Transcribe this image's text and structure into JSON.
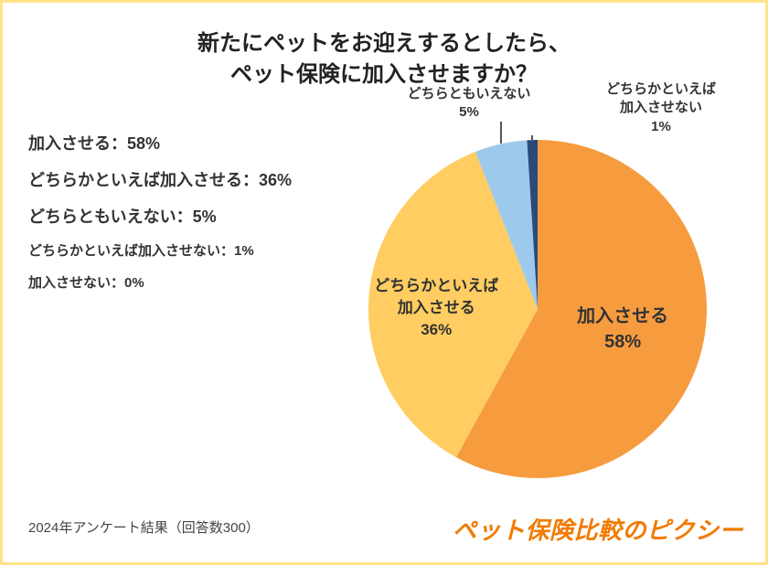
{
  "title_line1": "新たにペットをお迎えするとしたら、",
  "title_line2": "ペット保険に加入させますか？",
  "title_fontsize": 24,
  "title_color": "#222222",
  "legend_items": [
    {
      "text": "加入させる：58%",
      "fontsize": 18
    },
    {
      "text": "どちらかといえば加入させる：36%",
      "fontsize": 18
    },
    {
      "text": "どちらともいえない：5%",
      "fontsize": 18
    },
    {
      "text": "どちらかといえば加入させない：1%",
      "fontsize": 15
    },
    {
      "text": "加入させない：0%",
      "fontsize": 15
    }
  ],
  "pie_chart": {
    "type": "pie",
    "background_color": "#ffffff",
    "radius": 185,
    "start_angle_deg": -90,
    "slices": [
      {
        "label": "加入させる",
        "value": 58,
        "color": "#f69c3f",
        "in_chart_label": "加入させる\n58%",
        "label_color": "#333333",
        "label_fontsize": 20
      },
      {
        "label": "どちらかといえば加入させる",
        "value": 36,
        "color": "#ffcd61",
        "in_chart_label": "どちらかといえば\n加入させる\n36%",
        "label_color": "#333333",
        "label_fontsize": 17
      },
      {
        "label": "どちらともいえない",
        "value": 5,
        "color": "#9dc9ec",
        "callout": "どちらともいえない\n5%",
        "label_color": "#333333",
        "label_fontsize": 15
      },
      {
        "label": "どちらかといえば加入させない",
        "value": 1,
        "color": "#2b4a7a",
        "callout": "どちらかといえば\n加入させない\n1%",
        "label_color": "#333333",
        "label_fontsize": 15
      },
      {
        "label": "加入させない",
        "value": 0,
        "color": "#000000"
      }
    ]
  },
  "footer_note": "2024年アンケート結果（回答数300）",
  "footer_fontsize": 15,
  "brand_text": "ペット保険比較のピクシー",
  "brand_fontsize": 26,
  "brand_color": "#f27a00",
  "border_color": "#ffe28a"
}
